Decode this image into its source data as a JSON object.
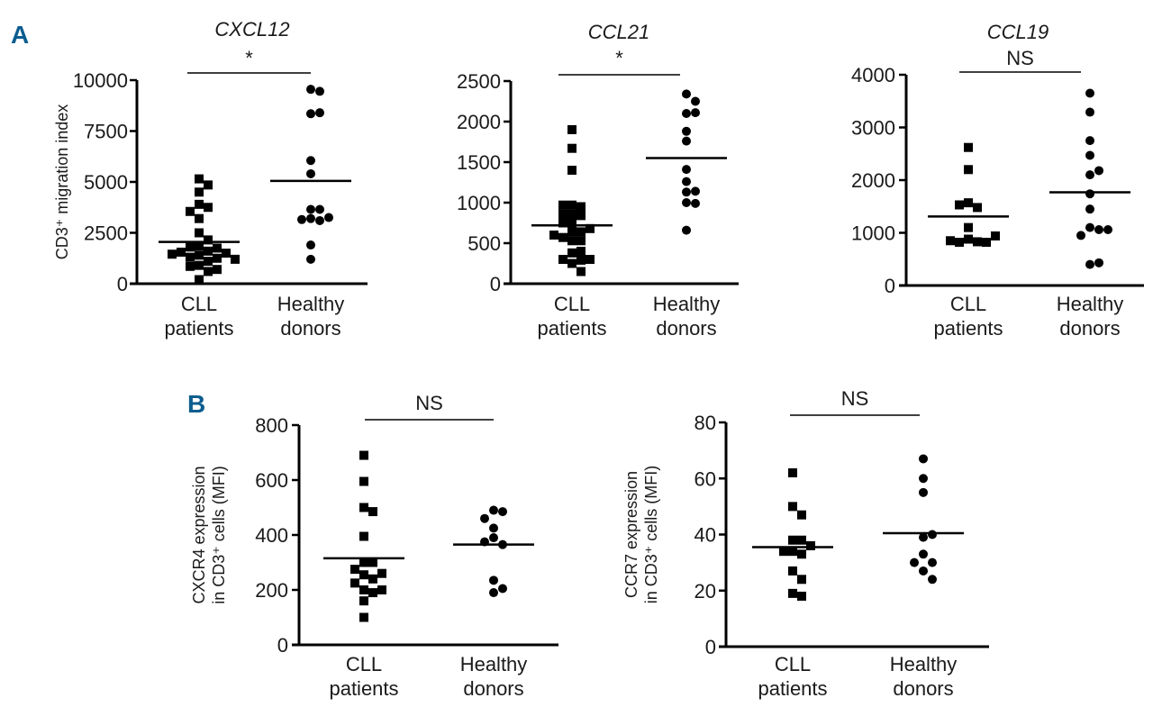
{
  "figure": {
    "panel_letters": [
      "A",
      "B"
    ],
    "panel_letter_color": "#0b5d8f",
    "marker_color": "#000000"
  },
  "chart_data": [
    {
      "type": "scatter",
      "panel": "A",
      "title": "CXCL12",
      "significance": "*",
      "ylabel": "CD3⁺ migration index",
      "xlabel": "",
      "ylim": [
        0,
        10000
      ],
      "yticks": [
        0,
        2500,
        5000,
        7500,
        10000
      ],
      "categories": [
        "CLL patients",
        "Healthy donors"
      ],
      "category_lines": [
        [
          "CLL",
          "patients"
        ],
        [
          "Healthy",
          "donors"
        ]
      ],
      "series": [
        {
          "name": "CLL patients",
          "marker": "square",
          "median": 2050,
          "values": [
            5150,
            4850,
            4500,
            3900,
            3750,
            3550,
            3200,
            2500,
            2150,
            1850,
            1800,
            1750,
            1600,
            1550,
            1500,
            1450,
            1400,
            1300,
            1250,
            1200,
            1100,
            900,
            850,
            700,
            600,
            200
          ]
        },
        {
          "name": "Healthy donors",
          "marker": "circle",
          "median": 5050,
          "values": [
            9550,
            9450,
            8350,
            8400,
            6050,
            5400,
            3650,
            3650,
            3200,
            3100,
            3150,
            3250,
            1900,
            1200
          ]
        }
      ]
    },
    {
      "type": "scatter",
      "panel": "A",
      "title": "CCL21",
      "significance": "*",
      "ylabel": "",
      "xlabel": "",
      "ylim": [
        0,
        2500
      ],
      "yticks": [
        0,
        500,
        1000,
        1500,
        2000,
        2500
      ],
      "categories": [
        "CLL patients",
        "Healthy donors"
      ],
      "category_lines": [
        [
          "CLL",
          "patients"
        ],
        [
          "Healthy",
          "donors"
        ]
      ],
      "series": [
        {
          "name": "CLL patients",
          "marker": "square",
          "median": 720,
          "values": [
            1900,
            1670,
            1400,
            970,
            950,
            970,
            860,
            840,
            860,
            750,
            750,
            640,
            640,
            680,
            570,
            530,
            530,
            600,
            380,
            400,
            300,
            290,
            250,
            300,
            150
          ]
        },
        {
          "name": "Healthy donors",
          "marker": "circle",
          "median": 1550,
          "values": [
            2340,
            2250,
            2100,
            2110,
            1880,
            1760,
            1410,
            1260,
            1130,
            1140,
            1000,
            990,
            660
          ]
        }
      ]
    },
    {
      "type": "scatter",
      "panel": "A",
      "title": "CCL19",
      "significance": "NS",
      "ylabel": "",
      "xlabel": "",
      "ylim": [
        0,
        4000
      ],
      "yticks": [
        0,
        1000,
        2000,
        3000,
        4000
      ],
      "categories": [
        "CLL patients",
        "Healthy donors"
      ],
      "category_lines": [
        [
          "CLL",
          "patients"
        ],
        [
          "Healthy",
          "donors"
        ]
      ],
      "series": [
        {
          "name": "CLL patients",
          "marker": "square",
          "median": 1310,
          "values": [
            2620,
            2200,
            1570,
            1480,
            1530,
            1100,
            880,
            830,
            820,
            820,
            850,
            940
          ]
        },
        {
          "name": "Healthy donors",
          "marker": "circle",
          "median": 1770,
          "values": [
            3650,
            3290,
            2750,
            2470,
            2100,
            2180,
            1740,
            1450,
            1100,
            1060,
            950,
            1060,
            400,
            430
          ]
        }
      ]
    },
    {
      "type": "scatter",
      "panel": "B",
      "title": "",
      "significance": "NS",
      "ylabel": "CXCR4 expression|in CD3⁺ cells (MFI)",
      "xlabel": "",
      "ylim": [
        0,
        800
      ],
      "yticks": [
        0,
        200,
        400,
        600,
        800
      ],
      "categories": [
        "CLL patients",
        "Healthy donors"
      ],
      "category_lines": [
        [
          "CLL",
          "patients"
        ],
        [
          "Healthy",
          "donors"
        ]
      ],
      "series": [
        {
          "name": "CLL patients",
          "marker": "square",
          "median": 315,
          "values": [
            690,
            595,
            500,
            485,
            395,
            300,
            300,
            275,
            255,
            240,
            260,
            225,
            200,
            190,
            200,
            160,
            100
          ]
        },
        {
          "name": "Healthy donors",
          "marker": "circle",
          "median": 365,
          "values": [
            490,
            485,
            460,
            425,
            390,
            365,
            375,
            235,
            205,
            190
          ]
        }
      ]
    },
    {
      "type": "scatter",
      "panel": "B",
      "title": "",
      "significance": "NS",
      "ylabel": "CCR7 expression|in CD3⁺ cells (MFI)",
      "xlabel": "",
      "ylim": [
        0,
        80
      ],
      "yticks": [
        0,
        20,
        40,
        60,
        80
      ],
      "categories": [
        "CLL patients",
        "Healthy donors"
      ],
      "category_lines": [
        [
          "CLL",
          "patients"
        ],
        [
          "Healthy",
          "donors"
        ]
      ],
      "series": [
        {
          "name": "CLL patients",
          "marker": "square",
          "median": 35.5,
          "values": [
            62,
            50,
            47,
            38,
            38,
            34,
            33,
            34,
            36,
            27,
            24,
            19,
            18
          ]
        },
        {
          "name": "Healthy donors",
          "marker": "circle",
          "median": 40.5,
          "values": [
            67,
            60,
            55,
            39,
            40,
            33,
            30,
            30,
            27,
            24
          ]
        }
      ]
    }
  ]
}
